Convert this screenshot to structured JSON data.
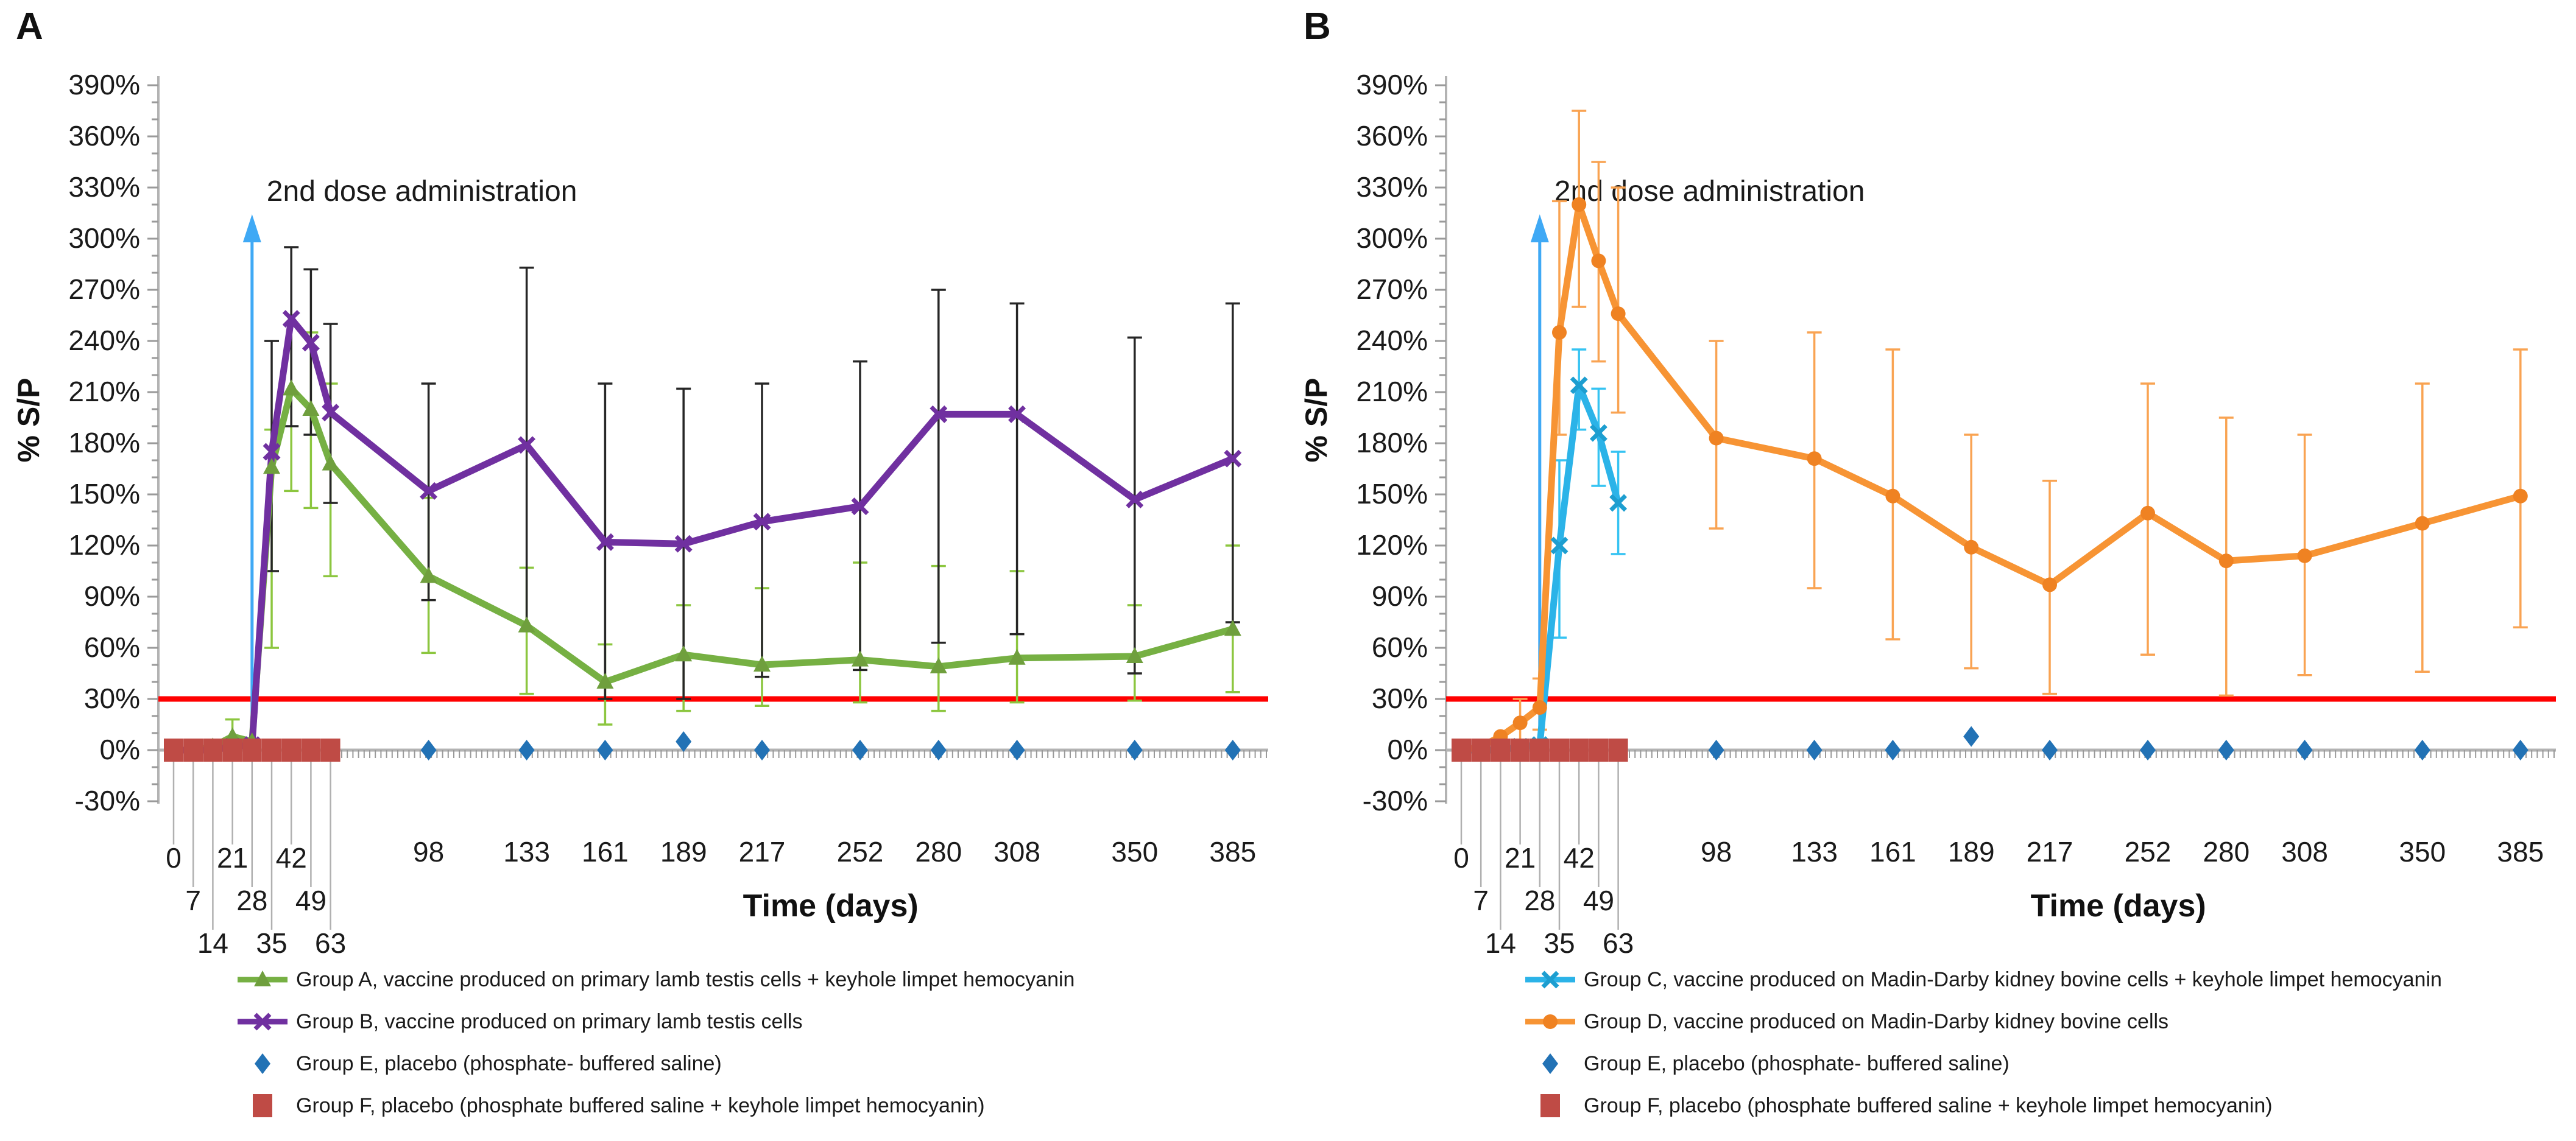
{
  "figure": {
    "threshold_label_value": 30,
    "colors": {
      "group_a_green": "#76b043",
      "group_b_purple": "#7030a0",
      "group_c_cyan": "#2bb3e8",
      "group_d_orange": "#f79434",
      "group_e_blue": "#2272b5",
      "group_f_brick": "#bf4b45",
      "threshold_red": "#ff0000",
      "arrow_blue": "#3fa9f5",
      "axis_gray": "#b3b3b3",
      "error_black": "#262626",
      "error_green": "#8cc63f",
      "error_orange": "#f9a352",
      "error_cyan": "#35c3f2"
    }
  },
  "chart_data": [
    {
      "type": "line",
      "panel_label": "A",
      "ylabel": "% S/P",
      "xlabel": "Time (days)",
      "annotation": "2nd dose administration",
      "annotation_arrow_day": 28,
      "ylim": [
        -30,
        390
      ],
      "y_tick_step": 30,
      "threshold": 30,
      "x_days": [
        0,
        7,
        14,
        21,
        28,
        35,
        42,
        49,
        63,
        98,
        133,
        161,
        189,
        217,
        252,
        280,
        308,
        350,
        385
      ],
      "x_staggered_days": [
        0,
        7,
        14,
        21,
        28,
        35,
        42,
        49,
        63
      ],
      "x_plain_days": [
        98,
        133,
        161,
        189,
        217,
        252,
        280,
        308,
        350,
        385
      ],
      "series": [
        {
          "name": "Group A, vaccine produced on primary lamb testis cells + keyhole limpet hemocyanin",
          "color": "#76b043",
          "marker": "triangle",
          "marker_color": "#6f9f3d",
          "line": true,
          "err_color": "#8cc63f",
          "values": [
            0,
            0,
            2,
            8,
            5,
            166,
            212,
            200,
            168,
            102,
            73,
            40,
            56,
            50,
            53,
            49,
            54,
            55,
            71
          ],
          "err_lo": [
            null,
            null,
            null,
            0,
            null,
            60,
            152,
            142,
            102,
            57,
            33,
            15,
            23,
            26,
            28,
            23,
            28,
            29,
            34
          ],
          "err_hi": [
            null,
            null,
            null,
            18,
            null,
            188,
            250,
            245,
            215,
            148,
            107,
            62,
            85,
            95,
            110,
            108,
            105,
            85,
            120
          ]
        },
        {
          "name": "Group B, vaccine produced on primary lamb testis cells",
          "color": "#7030a0",
          "marker": "xcross",
          "marker_color": "#7030a0",
          "line": true,
          "err_color": "#262626",
          "values": [
            0,
            0,
            0,
            2,
            3,
            175,
            253,
            239,
            198,
            152,
            179,
            122,
            121,
            134,
            143,
            197,
            197,
            147,
            171
          ],
          "err_lo": [
            null,
            null,
            null,
            null,
            null,
            105,
            190,
            185,
            145,
            88,
            70,
            30,
            30,
            43,
            47,
            63,
            68,
            45,
            75
          ],
          "err_hi": [
            null,
            null,
            null,
            null,
            null,
            240,
            295,
            282,
            250,
            215,
            283,
            215,
            212,
            215,
            228,
            270,
            262,
            242,
            262
          ]
        },
        {
          "name": "Group E, placebo (phosphate- buffered saline)",
          "color": "#2272b5",
          "marker": "diamond",
          "marker_color": "#2272b5",
          "line": false,
          "err_color": null,
          "values": [
            null,
            null,
            null,
            null,
            null,
            null,
            null,
            null,
            null,
            0,
            0,
            0,
            5,
            0,
            0,
            0,
            0,
            0,
            0
          ],
          "err_lo": [
            null,
            null,
            null,
            null,
            null,
            null,
            null,
            null,
            null,
            null,
            null,
            null,
            null,
            null,
            null,
            null,
            null,
            null,
            null
          ],
          "err_hi": [
            null,
            null,
            null,
            null,
            null,
            null,
            null,
            null,
            null,
            null,
            null,
            null,
            null,
            null,
            null,
            null,
            null,
            null,
            null
          ]
        },
        {
          "name": "Group F, placebo (phosphate buffered saline + keyhole limpet hemocyanin)",
          "color": "#bf4b45",
          "marker": "square",
          "marker_color": "#bf4b45",
          "line": false,
          "err_color": null,
          "values": [
            0,
            0,
            0,
            0,
            0,
            0,
            0,
            0,
            0,
            null,
            null,
            null,
            null,
            null,
            null,
            null,
            null,
            null,
            null
          ],
          "err_lo": [
            null,
            null,
            null,
            null,
            null,
            null,
            null,
            null,
            null,
            null,
            null,
            null,
            null,
            null,
            null,
            null,
            null,
            null,
            null
          ],
          "err_hi": [
            null,
            null,
            null,
            null,
            null,
            null,
            null,
            null,
            null,
            null,
            null,
            null,
            null,
            null,
            null,
            null,
            null,
            null,
            null
          ]
        }
      ]
    },
    {
      "type": "line",
      "panel_label": "B",
      "ylabel": "% S/P",
      "xlabel": "Time (days)",
      "annotation": "2nd dose administration",
      "annotation_arrow_day": 28,
      "ylim": [
        -30,
        390
      ],
      "y_tick_step": 30,
      "threshold": 30,
      "x_days": [
        0,
        7,
        14,
        21,
        28,
        35,
        42,
        49,
        63,
        98,
        133,
        161,
        189,
        217,
        252,
        280,
        308,
        350,
        385
      ],
      "x_staggered_days": [
        0,
        7,
        14,
        21,
        28,
        35,
        42,
        49,
        63
      ],
      "x_plain_days": [
        98,
        133,
        161,
        189,
        217,
        252,
        280,
        308,
        350,
        385
      ],
      "series": [
        {
          "name": "Group C, vaccine produced on Madin-Darby kidney bovine cells + keyhole limpet hemocyanin",
          "color": "#2bb3e8",
          "marker": "xcross",
          "marker_color": "#1d9ed0",
          "line": true,
          "err_color": "#35c3f2",
          "values": [
            0,
            0,
            0,
            2,
            3,
            120,
            214,
            186,
            145,
            null,
            null,
            null,
            null,
            null,
            null,
            null,
            null,
            null,
            null
          ],
          "err_lo": [
            null,
            null,
            null,
            null,
            null,
            66,
            188,
            155,
            115,
            null,
            null,
            null,
            null,
            null,
            null,
            null,
            null,
            null,
            null
          ],
          "err_hi": [
            null,
            null,
            null,
            null,
            null,
            170,
            235,
            212,
            175,
            null,
            null,
            null,
            null,
            null,
            null,
            null,
            null,
            null,
            null
          ]
        },
        {
          "name": "Group D, vaccine produced on Madin-Darby kidney bovine cells",
          "color": "#f79434",
          "marker": "circle",
          "marker_color": "#ef8222",
          "line": true,
          "err_color": "#f9a352",
          "values": [
            0,
            2,
            8,
            16,
            25,
            245,
            320,
            287,
            256,
            183,
            171,
            149,
            119,
            97,
            139,
            111,
            114,
            133,
            149
          ],
          "err_lo": [
            null,
            null,
            null,
            5,
            12,
            185,
            260,
            228,
            198,
            130,
            95,
            65,
            48,
            33,
            56,
            32,
            44,
            46,
            72
          ],
          "err_hi": [
            null,
            null,
            null,
            30,
            42,
            322,
            375,
            345,
            330,
            240,
            245,
            235,
            185,
            158,
            215,
            195,
            185,
            215,
            235
          ]
        },
        {
          "name": "Group E, placebo (phosphate- buffered saline)",
          "color": "#2272b5",
          "marker": "diamond",
          "marker_color": "#2272b5",
          "line": false,
          "err_color": null,
          "values": [
            null,
            null,
            null,
            null,
            null,
            null,
            null,
            null,
            null,
            0,
            0,
            0,
            8,
            0,
            0,
            0,
            0,
            0,
            0
          ],
          "err_lo": [
            null,
            null,
            null,
            null,
            null,
            null,
            null,
            null,
            null,
            null,
            null,
            null,
            null,
            null,
            null,
            null,
            null,
            null,
            null
          ],
          "err_hi": [
            null,
            null,
            null,
            null,
            null,
            null,
            null,
            null,
            null,
            null,
            null,
            null,
            null,
            null,
            null,
            null,
            null,
            null,
            null
          ]
        },
        {
          "name": "Group F, placebo (phosphate buffered saline + keyhole limpet hemocyanin)",
          "color": "#bf4b45",
          "marker": "square",
          "marker_color": "#bf4b45",
          "line": false,
          "err_color": null,
          "values": [
            0,
            0,
            0,
            0,
            0,
            0,
            0,
            0,
            0,
            null,
            null,
            null,
            null,
            null,
            null,
            null,
            null,
            null,
            null
          ],
          "err_lo": [
            null,
            null,
            null,
            null,
            null,
            null,
            null,
            null,
            null,
            null,
            null,
            null,
            null,
            null,
            null,
            null,
            null,
            null,
            null
          ],
          "err_hi": [
            null,
            null,
            null,
            null,
            null,
            null,
            null,
            null,
            null,
            null,
            null,
            null,
            null,
            null,
            null,
            null,
            null,
            null,
            null
          ]
        }
      ]
    }
  ]
}
